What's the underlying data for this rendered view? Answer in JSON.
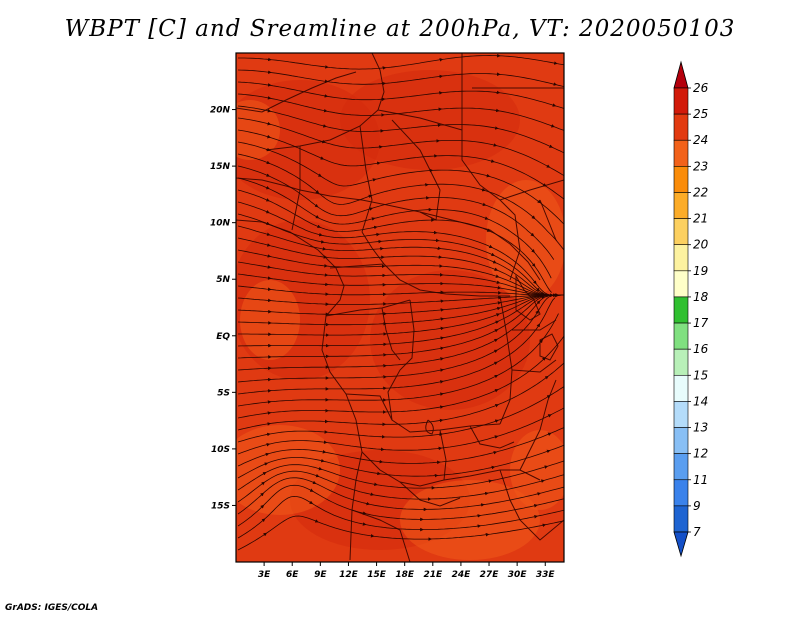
{
  "title": "WBPT [C] and Sreamline at 200hPa, VT: 2020050103",
  "credit": "GrADS: IGES/COLA",
  "map": {
    "lon_range": [
      0,
      35
    ],
    "lat_range": [
      -20,
      25
    ],
    "x_ticks": [
      {
        "lon": 3,
        "label": "3E"
      },
      {
        "lon": 6,
        "label": "6E"
      },
      {
        "lon": 9,
        "label": "9E"
      },
      {
        "lon": 12,
        "label": "12E"
      },
      {
        "lon": 15,
        "label": "15E"
      },
      {
        "lon": 18,
        "label": "18E"
      },
      {
        "lon": 21,
        "label": "21E"
      },
      {
        "lon": 24,
        "label": "24E"
      },
      {
        "lon": 27,
        "label": "27E"
      },
      {
        "lon": 30,
        "label": "30E"
      },
      {
        "lon": 33,
        "label": "33E"
      }
    ],
    "y_ticks": [
      {
        "lat": 20,
        "label": "20N"
      },
      {
        "lat": 15,
        "label": "15N"
      },
      {
        "lat": 10,
        "label": "10N"
      },
      {
        "lat": 5,
        "label": "5N"
      },
      {
        "lat": 0,
        "label": "EQ"
      },
      {
        "lat": -5,
        "label": "5S"
      },
      {
        "lat": -10,
        "label": "10S"
      },
      {
        "lat": -15,
        "label": "15S"
      }
    ],
    "field_colors": {
      "base": "#e03a12",
      "warm": "#d42a0c",
      "cool": "#f05a1a"
    },
    "border_color": "#4a0a00",
    "streamline_color": "#2a0600"
  },
  "colorbar": {
    "labels": [
      "26",
      "25",
      "24",
      "23",
      "22",
      "21",
      "20",
      "19",
      "18",
      "17",
      "16",
      "15",
      "14",
      "13",
      "12",
      "11",
      "9",
      "7"
    ],
    "colors": [
      "#b4000c",
      "#d21a0a",
      "#e23a10",
      "#f2621a",
      "#fa8c0a",
      "#fcac28",
      "#fcd060",
      "#fdf2a0",
      "#ffffc8",
      "#30c030",
      "#80e080",
      "#b8f0b8",
      "#e8fcfc",
      "#b4dcfa",
      "#88bff5",
      "#5a9ef0",
      "#3a82eb",
      "#1e64d2",
      "#1450c8"
    ]
  }
}
